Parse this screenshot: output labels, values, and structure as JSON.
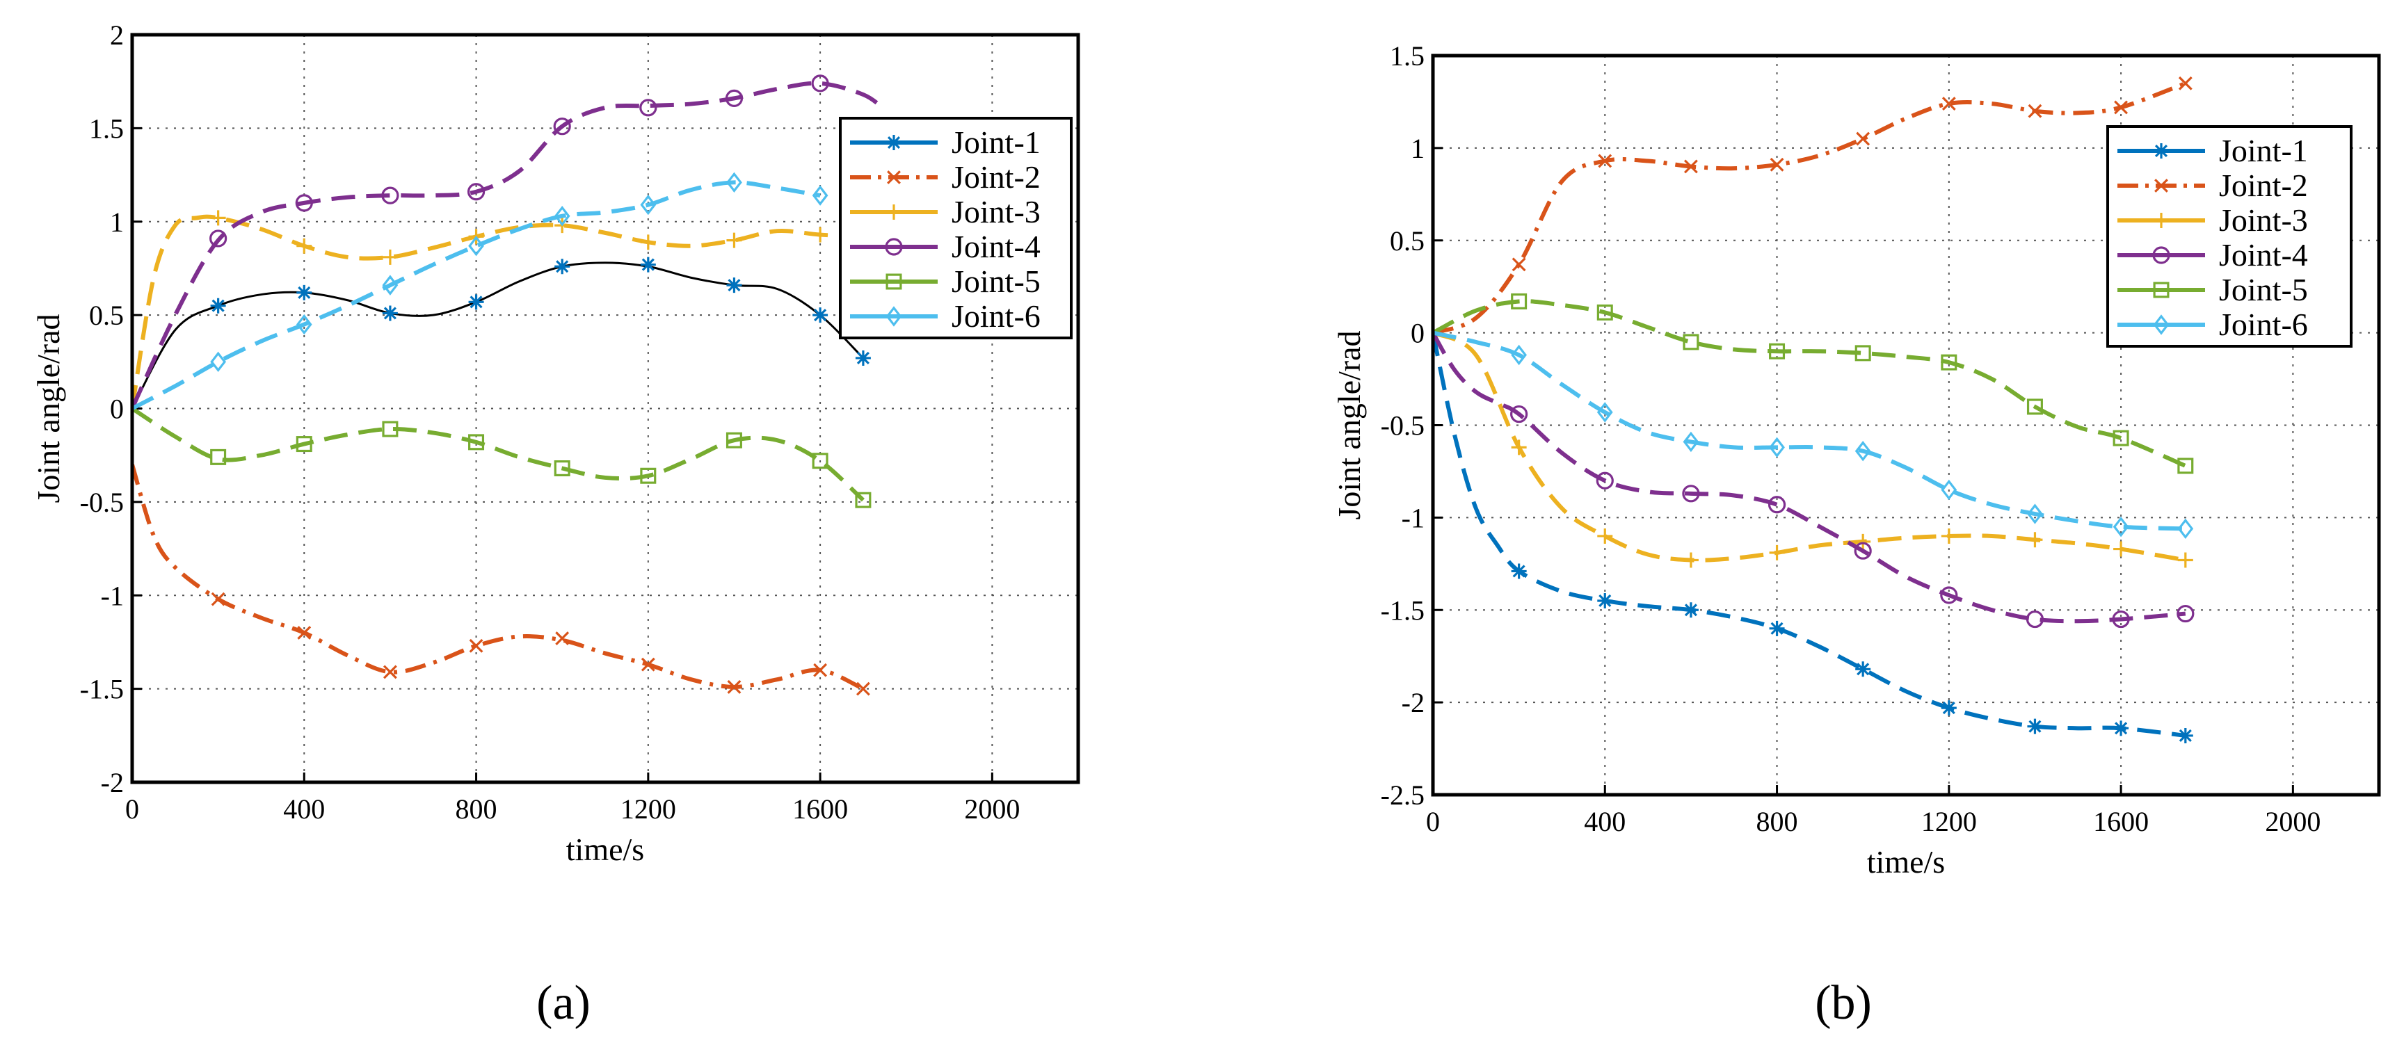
{
  "figure": {
    "left_label": "(a)",
    "right_label": "(b)"
  },
  "colors": {
    "Joint-1": "#0072BD",
    "Joint-2": "#D95319",
    "Joint-3": "#EDB120",
    "Joint-4": "#7E2F8E",
    "Joint-5": "#77AC30",
    "Joint-6": "#4DBEEE",
    "grid": "#555555",
    "axis": "#000000"
  },
  "chart_data": [
    {
      "type": "line",
      "panel": "(a)",
      "xlabel": "time/s",
      "ylabel": "Joint angle/rad",
      "xlim": [
        0,
        2200
      ],
      "ylim": [
        -2,
        2
      ],
      "xticks": [
        0,
        400,
        800,
        1200,
        1600,
        2000
      ],
      "yticks": [
        2,
        1.5,
        1,
        0.5,
        0,
        -0.5,
        -1,
        -1.5,
        -2
      ],
      "ytick_labels": [
        "2",
        "1.5",
        "1",
        "0.5",
        "0",
        "-0.5",
        "-1",
        "-1.5",
        "-2"
      ],
      "grid": true,
      "legend_position": "top-right",
      "series": [
        {
          "name": "Joint-1",
          "marker": "star",
          "dash": "solid",
          "line_color": "#000000",
          "x": [
            0,
            100,
            200,
            300,
            400,
            500,
            600,
            700,
            800,
            900,
            1000,
            1100,
            1200,
            1300,
            1400,
            1500,
            1600,
            1700
          ],
          "y": [
            0,
            0.42,
            0.55,
            0.61,
            0.62,
            0.58,
            0.51,
            0.5,
            0.57,
            0.68,
            0.76,
            0.78,
            0.76,
            0.7,
            0.66,
            0.64,
            0.5,
            0.27
          ],
          "markers_x": [
            200,
            400,
            600,
            800,
            1000,
            1200,
            1400,
            1600,
            1700
          ],
          "markers_y": [
            0.55,
            0.62,
            0.51,
            0.57,
            0.76,
            0.77,
            0.66,
            0.5,
            0.27
          ]
        },
        {
          "name": "Joint-2",
          "marker": "x",
          "dash": "dashdot",
          "x": [
            0,
            50,
            100,
            200,
            300,
            400,
            500,
            600,
            700,
            800,
            900,
            1000,
            1100,
            1200,
            1300,
            1400,
            1500,
            1600,
            1700
          ],
          "y": [
            -0.3,
            -0.68,
            -0.85,
            -1.02,
            -1.12,
            -1.2,
            -1.32,
            -1.41,
            -1.36,
            -1.27,
            -1.22,
            -1.24,
            -1.31,
            -1.37,
            -1.45,
            -1.49,
            -1.45,
            -1.4,
            -1.5
          ],
          "markers_x": [
            200,
            400,
            600,
            800,
            1000,
            1200,
            1400,
            1600,
            1700
          ],
          "markers_y": [
            -1.02,
            -1.2,
            -1.41,
            -1.27,
            -1.23,
            -1.37,
            -1.49,
            -1.4,
            -1.5
          ]
        },
        {
          "name": "Joint-3",
          "marker": "plus",
          "dash": "dashed",
          "x": [
            0,
            50,
            100,
            150,
            200,
            300,
            400,
            500,
            600,
            700,
            800,
            900,
            1000,
            1100,
            1200,
            1300,
            1400,
            1500,
            1600,
            1700
          ],
          "y": [
            0,
            0.7,
            0.98,
            1.02,
            1.02,
            0.96,
            0.87,
            0.81,
            0.81,
            0.86,
            0.92,
            0.97,
            0.98,
            0.94,
            0.89,
            0.87,
            0.9,
            0.95,
            0.93,
            0.92
          ],
          "markers_x": [
            200,
            400,
            600,
            800,
            1000,
            1200,
            1400,
            1600
          ],
          "markers_y": [
            1.02,
            0.87,
            0.81,
            0.92,
            0.98,
            0.89,
            0.9,
            0.93
          ]
        },
        {
          "name": "Joint-4",
          "marker": "circle",
          "dash": "dashed",
          "x": [
            0,
            100,
            200,
            300,
            400,
            500,
            600,
            700,
            800,
            900,
            1000,
            1100,
            1200,
            1300,
            1400,
            1500,
            1600,
            1700,
            1750
          ],
          "y": [
            0,
            0.5,
            0.9,
            1.05,
            1.1,
            1.13,
            1.14,
            1.14,
            1.16,
            1.27,
            1.51,
            1.61,
            1.62,
            1.63,
            1.66,
            1.71,
            1.74,
            1.68,
            1.6
          ],
          "markers_x": [
            200,
            400,
            600,
            800,
            1000,
            1200,
            1400,
            1600
          ],
          "markers_y": [
            0.91,
            1.1,
            1.14,
            1.16,
            1.51,
            1.61,
            1.66,
            1.74
          ]
        },
        {
          "name": "Joint-5",
          "marker": "square",
          "dash": "dashed",
          "x": [
            0,
            100,
            200,
            300,
            400,
            500,
            600,
            700,
            800,
            900,
            1000,
            1100,
            1200,
            1300,
            1400,
            1500,
            1600,
            1700
          ],
          "y": [
            0,
            -0.15,
            -0.27,
            -0.25,
            -0.19,
            -0.14,
            -0.11,
            -0.13,
            -0.18,
            -0.26,
            -0.32,
            -0.37,
            -0.36,
            -0.27,
            -0.17,
            -0.17,
            -0.28,
            -0.49
          ],
          "markers_x": [
            200,
            400,
            600,
            800,
            1000,
            1200,
            1400,
            1600,
            1700
          ],
          "markers_y": [
            -0.26,
            -0.19,
            -0.11,
            -0.18,
            -0.32,
            -0.36,
            -0.17,
            -0.28,
            -0.49
          ]
        },
        {
          "name": "Joint-6",
          "marker": "diamond",
          "dash": "dashed",
          "x": [
            0,
            100,
            200,
            300,
            400,
            500,
            600,
            700,
            800,
            900,
            1000,
            1100,
            1200,
            1300,
            1400,
            1500,
            1600
          ],
          "y": [
            0,
            0.12,
            0.25,
            0.36,
            0.45,
            0.55,
            0.66,
            0.77,
            0.87,
            0.96,
            1.03,
            1.05,
            1.09,
            1.17,
            1.21,
            1.18,
            1.14
          ],
          "markers_x": [
            200,
            400,
            600,
            800,
            1000,
            1200,
            1400,
            1600
          ],
          "markers_y": [
            0.25,
            0.45,
            0.66,
            0.87,
            1.03,
            1.09,
            1.21,
            1.14
          ]
        }
      ]
    },
    {
      "type": "line",
      "panel": "(b)",
      "xlabel": "time/s",
      "ylabel": "Joint angle/rad",
      "xlim": [
        0,
        2200
      ],
      "ylim": [
        -2.5,
        1.5
      ],
      "xticks": [
        0,
        400,
        800,
        1200,
        1600,
        2000
      ],
      "yticks": [
        1.5,
        1,
        0.5,
        0,
        -0.5,
        -1,
        -1.5,
        -2,
        -2.5
      ],
      "ytick_labels": [
        "1.5",
        "1",
        "0.5",
        "0",
        "-0.5",
        "-1",
        "-1.5",
        "-2",
        "-2.5"
      ],
      "grid": true,
      "legend_position": "top-right",
      "series": [
        {
          "name": "Joint-1",
          "marker": "star",
          "dash": "dashed",
          "x": [
            0,
            50,
            100,
            150,
            200,
            300,
            400,
            500,
            600,
            700,
            800,
            900,
            1000,
            1100,
            1200,
            1300,
            1400,
            1500,
            1600,
            1750
          ],
          "y": [
            0,
            -0.55,
            -0.95,
            -1.15,
            -1.29,
            -1.4,
            -1.45,
            -1.48,
            -1.5,
            -1.54,
            -1.6,
            -1.7,
            -1.82,
            -1.94,
            -2.03,
            -2.09,
            -2.13,
            -2.14,
            -2.14,
            -2.18
          ],
          "markers_x": [
            200,
            400,
            600,
            800,
            1000,
            1200,
            1400,
            1600,
            1750
          ],
          "markers_y": [
            -1.29,
            -1.45,
            -1.5,
            -1.6,
            -1.82,
            -2.03,
            -2.13,
            -2.14,
            -2.18
          ]
        },
        {
          "name": "Joint-2",
          "marker": "x",
          "dash": "dashdot",
          "x": [
            0,
            100,
            200,
            300,
            400,
            500,
            600,
            700,
            800,
            900,
            1000,
            1100,
            1200,
            1300,
            1400,
            1500,
            1600,
            1750
          ],
          "y": [
            0,
            0.08,
            0.37,
            0.82,
            0.93,
            0.93,
            0.9,
            0.89,
            0.91,
            0.96,
            1.05,
            1.16,
            1.24,
            1.24,
            1.2,
            1.19,
            1.22,
            1.35
          ],
          "markers_x": [
            200,
            400,
            600,
            800,
            1000,
            1200,
            1400,
            1600,
            1750
          ],
          "markers_y": [
            0.37,
            0.93,
            0.9,
            0.91,
            1.05,
            1.24,
            1.2,
            1.22,
            1.35
          ]
        },
        {
          "name": "Joint-3",
          "marker": "plus",
          "dash": "dashed",
          "x": [
            0,
            100,
            200,
            300,
            400,
            500,
            600,
            700,
            800,
            900,
            1000,
            1100,
            1200,
            1300,
            1400,
            1500,
            1600,
            1750
          ],
          "y": [
            0,
            -0.12,
            -0.62,
            -0.95,
            -1.1,
            -1.2,
            -1.23,
            -1.22,
            -1.19,
            -1.15,
            -1.13,
            -1.11,
            -1.1,
            -1.1,
            -1.12,
            -1.14,
            -1.17,
            -1.23
          ],
          "markers_x": [
            200,
            400,
            600,
            800,
            1000,
            1200,
            1400,
            1600,
            1750
          ],
          "markers_y": [
            -0.62,
            -1.1,
            -1.23,
            -1.19,
            -1.13,
            -1.1,
            -1.12,
            -1.17,
            -1.23
          ]
        },
        {
          "name": "Joint-4",
          "marker": "circle",
          "dash": "dashed",
          "x": [
            0,
            50,
            100,
            150,
            200,
            300,
            400,
            500,
            600,
            700,
            800,
            900,
            1000,
            1100,
            1200,
            1300,
            1400,
            1500,
            1600,
            1750
          ],
          "y": [
            0,
            -0.2,
            -0.32,
            -0.38,
            -0.44,
            -0.65,
            -0.8,
            -0.86,
            -0.87,
            -0.88,
            -0.93,
            -1.05,
            -1.18,
            -1.32,
            -1.42,
            -1.5,
            -1.55,
            -1.56,
            -1.55,
            -1.52
          ],
          "markers_x": [
            200,
            400,
            600,
            800,
            1000,
            1200,
            1400,
            1600,
            1750
          ],
          "markers_y": [
            -0.44,
            -0.8,
            -0.87,
            -0.93,
            -1.18,
            -1.42,
            -1.55,
            -1.55,
            -1.52
          ]
        },
        {
          "name": "Joint-5",
          "marker": "square",
          "dash": "dashed",
          "x": [
            0,
            100,
            200,
            300,
            400,
            500,
            600,
            700,
            800,
            900,
            1000,
            1100,
            1200,
            1300,
            1400,
            1500,
            1600,
            1750
          ],
          "y": [
            0,
            0.12,
            0.17,
            0.15,
            0.11,
            0.03,
            -0.05,
            -0.09,
            -0.1,
            -0.1,
            -0.11,
            -0.13,
            -0.16,
            -0.25,
            -0.4,
            -0.51,
            -0.57,
            -0.72
          ],
          "markers_x": [
            200,
            400,
            600,
            800,
            1000,
            1200,
            1400,
            1600,
            1750
          ],
          "markers_y": [
            0.17,
            0.11,
            -0.05,
            -0.1,
            -0.11,
            -0.16,
            -0.4,
            -0.57,
            -0.72
          ]
        },
        {
          "name": "Joint-6",
          "marker": "diamond",
          "dash": "dashed",
          "x": [
            0,
            100,
            200,
            300,
            400,
            500,
            600,
            700,
            800,
            900,
            1000,
            1100,
            1200,
            1300,
            1400,
            1500,
            1600,
            1750
          ],
          "y": [
            0,
            -0.05,
            -0.12,
            -0.28,
            -0.43,
            -0.54,
            -0.59,
            -0.62,
            -0.62,
            -0.62,
            -0.64,
            -0.73,
            -0.85,
            -0.93,
            -0.98,
            -1.02,
            -1.05,
            -1.06
          ],
          "markers_x": [
            200,
            400,
            600,
            800,
            1000,
            1200,
            1400,
            1600,
            1750
          ],
          "markers_y": [
            -0.12,
            -0.43,
            -0.59,
            -0.62,
            -0.64,
            -0.85,
            -0.98,
            -1.05,
            -1.06
          ]
        }
      ]
    }
  ]
}
